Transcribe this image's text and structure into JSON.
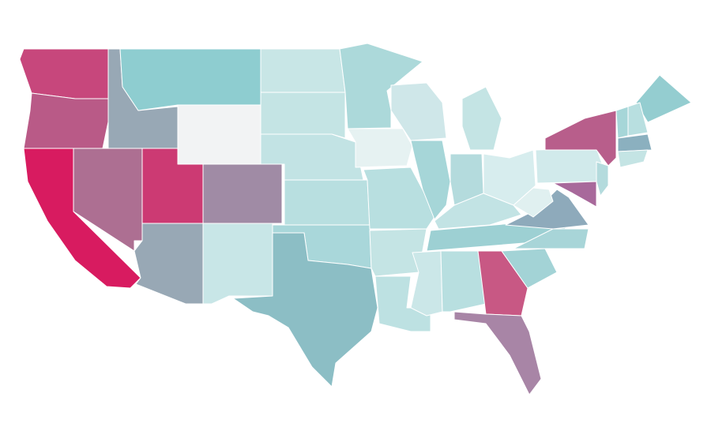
{
  "chart_data": {
    "type": "map",
    "colors": [
      "#c7477c",
      "#b95a87",
      "#d81b60",
      "#ad6f92",
      "#98a8b5",
      "#8ecdd0",
      "#f2f3f4",
      "#cc3a73",
      "#a08ba5",
      "#98a8b5",
      "#c8e6e7",
      "#c8e6e6",
      "#c4e4e4",
      "#c2e3e4",
      "#b8dfe0",
      "#a9d7da",
      "#8cbec5",
      "#acd9da",
      "#e6f2f2",
      "#b8dfe0",
      "#c4e4e4",
      "#bde1e2",
      "#cfe7e9",
      "#a6d6d8",
      "#c4e4e4",
      "#b4dbdd",
      "#d7edee",
      "#c2e3e4",
      "#9dd0d3",
      "#cbe7e8",
      "#b8dfe0",
      "#c85884",
      "#a885a6",
      "#a3d3d6",
      "#a8d5d8",
      "#8eaabb",
      "#e0f0f0",
      "#d1eaeb",
      "#b85e8b",
      "#a8699b",
      "#b4dbdd",
      "#94cdd0",
      "#a6d6d8",
      "#b8dfe0",
      "#8bb0bf",
      "#c4e4e4"
    ]
  }
}
